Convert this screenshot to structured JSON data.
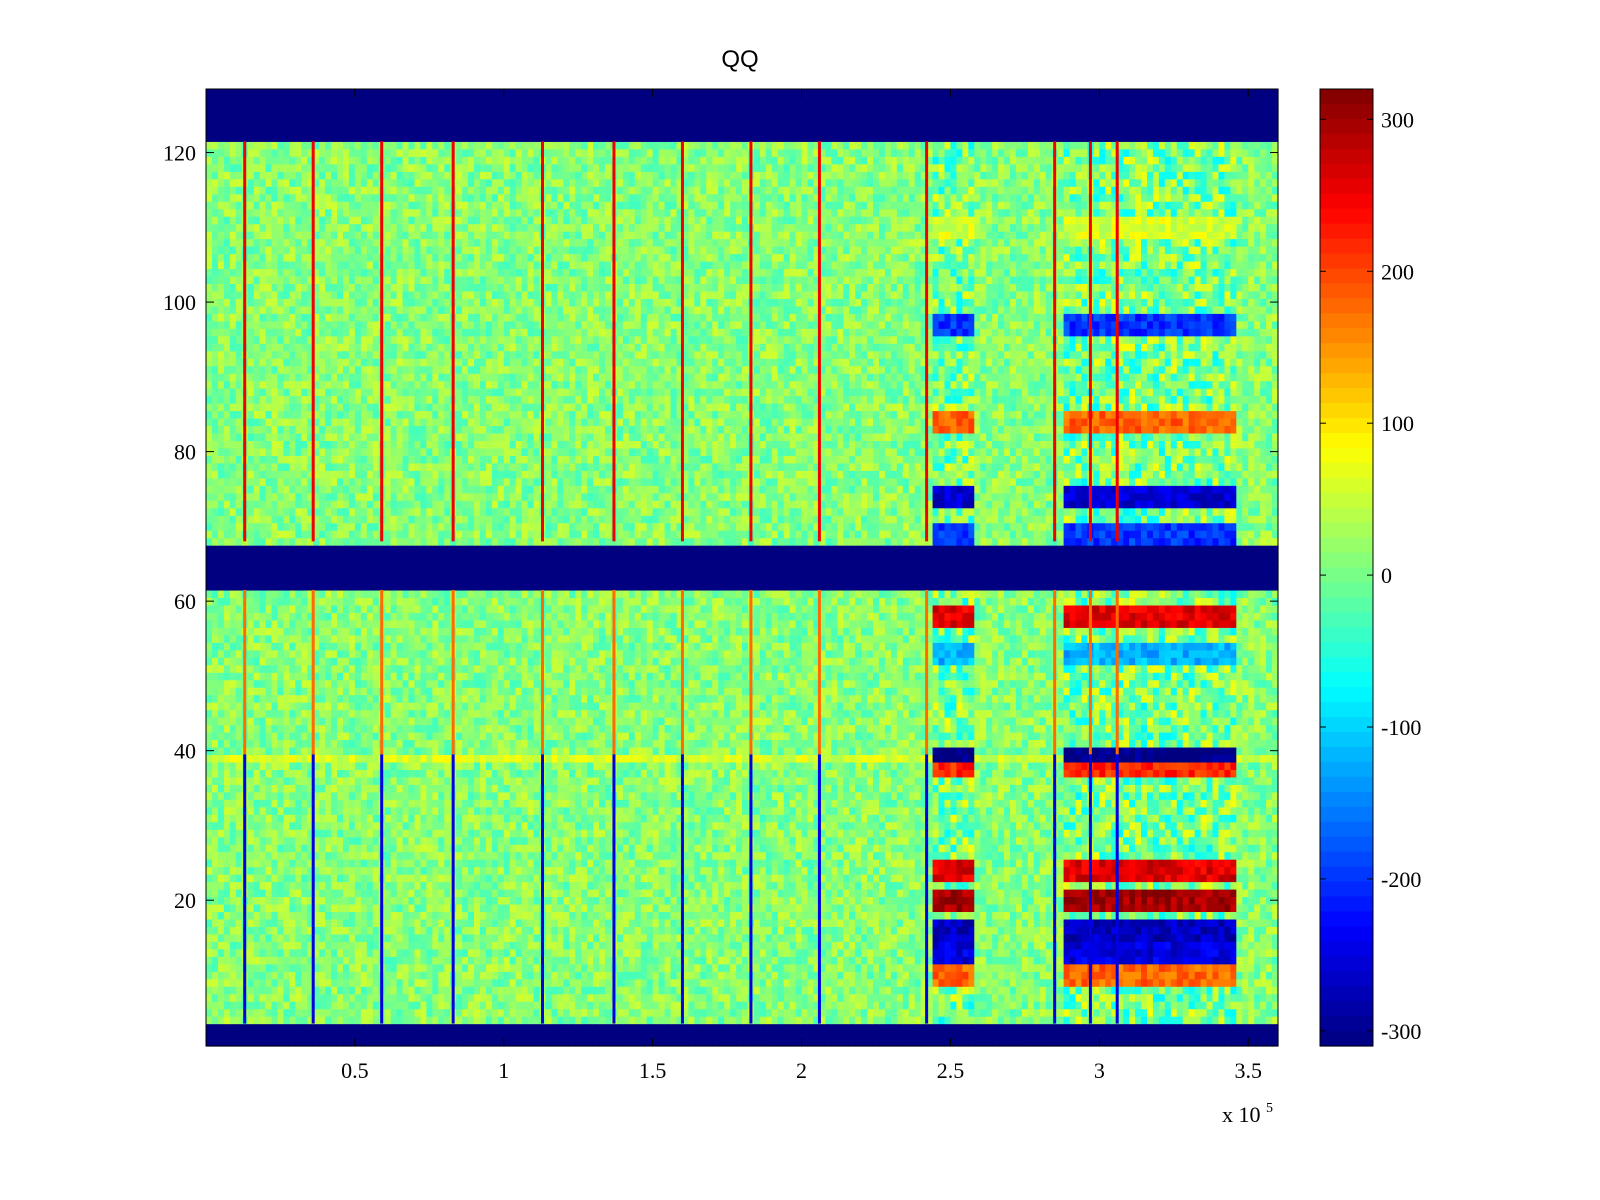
{
  "chart_data": {
    "type": "heatmap",
    "title": "QQ",
    "xlabel": "",
    "ylabel": "",
    "x_exponent_label": "x 10",
    "x_exponent_power": "5",
    "xlim": [
      0,
      3.6
    ],
    "ylim": [
      0.5,
      128.5
    ],
    "xticks": [
      0.5,
      1,
      1.5,
      2,
      2.5,
      3,
      3.5
    ],
    "xtick_labels": [
      "0.5",
      "1",
      "1.5",
      "2",
      "2.5",
      "3",
      "3.5"
    ],
    "yticks": [
      20,
      40,
      60,
      80,
      100,
      120
    ],
    "ytick_labels": [
      "20",
      "40",
      "60",
      "80",
      "100",
      "120"
    ],
    "colormap": "jet",
    "clim": [
      -310,
      320
    ],
    "colorbar_ticks": [
      300,
      200,
      100,
      0,
      -100,
      -200,
      -300
    ],
    "colorbar_labels": [
      "300",
      "200",
      "100",
      "0",
      "-100",
      "-200",
      "-300"
    ],
    "masked_row_bands": [
      {
        "rows": [
          122,
          128
        ],
        "value": -310
      },
      {
        "rows": [
          62,
          67
        ],
        "value": -310
      },
      {
        "rows": [
          1,
          3
        ],
        "value": -310
      }
    ],
    "vertical_spike_columns_x": [
      0.13,
      0.36,
      0.59,
      0.83,
      1.13,
      1.37,
      1.6,
      1.83,
      2.06,
      2.42,
      2.85,
      2.97,
      3.06
    ],
    "spike_value_upper_half": 250,
    "spike_value_lower_half": -250,
    "active_regions_x": [
      [
        2.43,
        2.57
      ],
      [
        2.87,
        3.45
      ]
    ],
    "active_row_pattern": [
      {
        "row": 110,
        "value": 60
      },
      {
        "row": 97,
        "value": -200
      },
      {
        "row": 84,
        "value": 180
      },
      {
        "row": 74,
        "value": -260
      },
      {
        "row": 69,
        "value": -200
      },
      {
        "row": 58,
        "value": 260
      },
      {
        "row": 53,
        "value": -120
      },
      {
        "row": 39,
        "value": -310
      },
      {
        "row": 38,
        "value": 220
      },
      {
        "row": 24,
        "value": 260
      },
      {
        "row": 20,
        "value": 300
      },
      {
        "row": 16,
        "value": -270
      },
      {
        "row": 13,
        "value": -250
      },
      {
        "row": 10,
        "value": 180
      }
    ],
    "background_value": 10
  }
}
